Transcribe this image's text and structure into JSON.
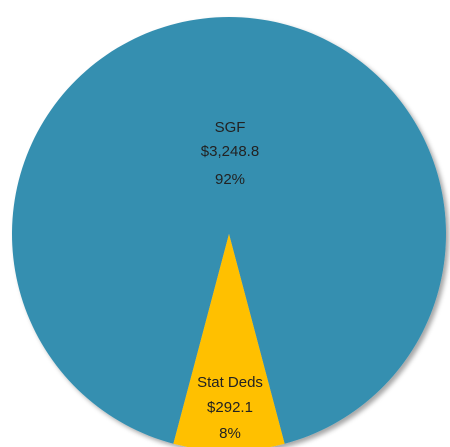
{
  "chart_data": {
    "type": "pie",
    "categories": [
      "SGF",
      "Stat Deds"
    ],
    "values": [
      3248.8,
      292.1
    ],
    "value_labels": [
      "$3,248.8",
      "$292.1"
    ],
    "percents": [
      92,
      8
    ],
    "percent_labels": [
      "92%",
      "8%"
    ],
    "colors": [
      "#368fb0",
      "#ffc000"
    ]
  }
}
